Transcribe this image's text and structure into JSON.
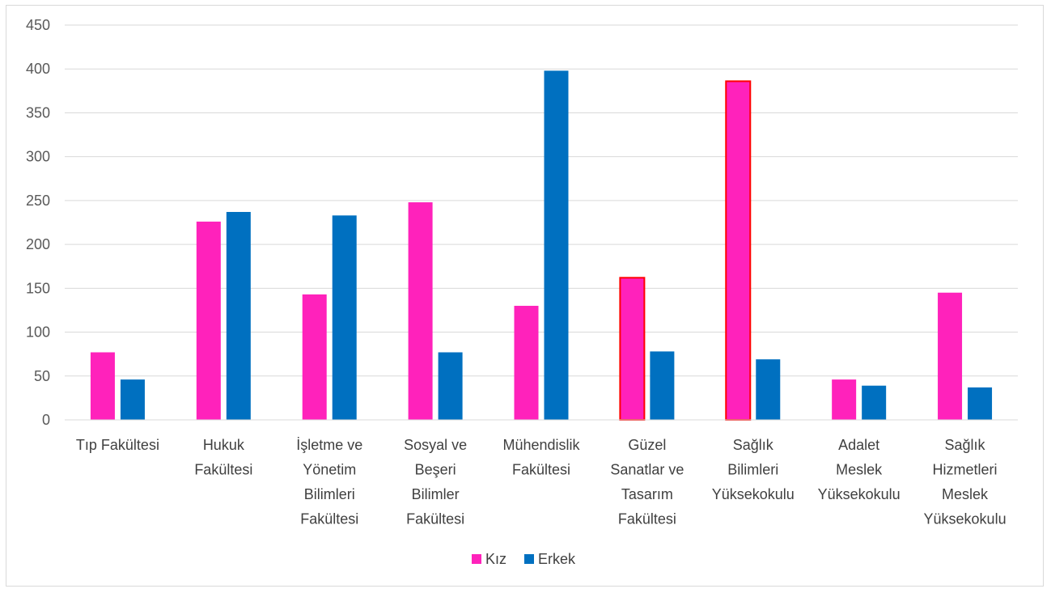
{
  "chart_data": {
    "type": "bar",
    "title": "",
    "xlabel": "",
    "ylabel": "",
    "ylim": [
      0,
      450
    ],
    "yticks": [
      0,
      50,
      100,
      150,
      200,
      250,
      300,
      350,
      400,
      450
    ],
    "grid": true,
    "legend_position": "bottom",
    "categories": [
      [
        "Tıp Fakültesi"
      ],
      [
        "Hukuk",
        "Fakültesi"
      ],
      [
        "İşletme ve",
        "Yönetim",
        "Bilimleri",
        "Fakültesi"
      ],
      [
        "Sosyal ve",
        "Beşeri",
        "Bilimler",
        "Fakültesi"
      ],
      [
        "Mühendislik",
        "Fakültesi"
      ],
      [
        "Güzel",
        "Sanatlar ve",
        "Tasarım",
        "Fakültesi"
      ],
      [
        "Sağlık",
        "Bilimleri",
        "Yüksekokulu"
      ],
      [
        "Adalet",
        "Meslek",
        "Yüksekokulu"
      ],
      [
        "Sağlık",
        "Hizmetleri",
        "Meslek",
        "Yüksekokulu"
      ]
    ],
    "series": [
      {
        "name": "Kız",
        "color": "#ff22bb",
        "values": [
          77,
          226,
          143,
          248,
          130,
          162,
          386,
          46,
          145
        ]
      },
      {
        "name": "Erkek",
        "color": "#0070c0",
        "values": [
          46,
          237,
          233,
          77,
          398,
          78,
          69,
          39,
          37
        ]
      }
    ],
    "highlighted_bars": [
      {
        "series": 0,
        "category": 5,
        "outline_color": "#ff0000"
      },
      {
        "series": 0,
        "category": 6,
        "outline_color": "#ff0000"
      }
    ]
  }
}
